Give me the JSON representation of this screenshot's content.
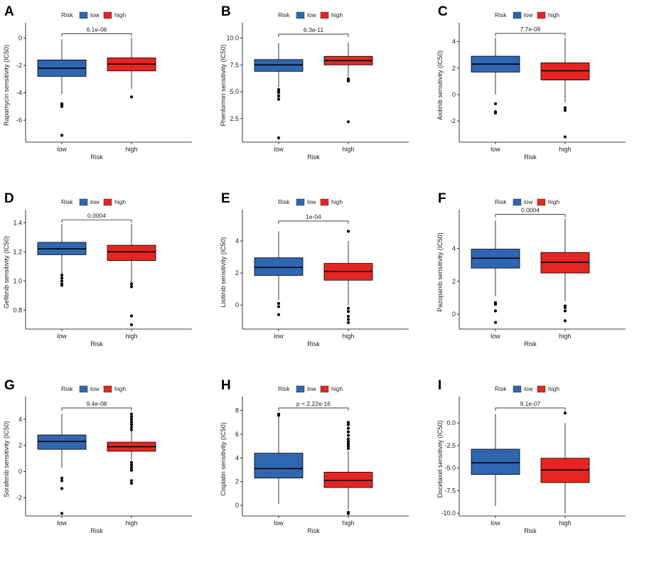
{
  "colors": {
    "low": "#2f66b1",
    "high": "#e62522",
    "line": "#000000"
  },
  "legend": {
    "title": "Risk",
    "labels": [
      "low",
      "high"
    ]
  },
  "chart_data": [
    {
      "type": "box",
      "label": "A",
      "title": "",
      "xlabel": "Risk",
      "ylabel": "Rapamycin sensitivity (IC50)",
      "categories": [
        "low",
        "high"
      ],
      "ylim": [
        -7.6,
        0.7
      ],
      "yticks": [
        -6,
        -4,
        -2,
        0
      ],
      "ytick_labels": [
        "-6",
        "-4",
        "-2",
        "0"
      ],
      "pvalue": "6.1e-06",
      "series": [
        {
          "name": "low",
          "q1": -2.8,
          "median": -2.2,
          "q3": -1.6,
          "whisker_low": -4.1,
          "whisker_high": -0.1,
          "outliers": [
            -4.8,
            -4.9,
            -5.0,
            -7.1
          ]
        },
        {
          "name": "high",
          "q1": -2.4,
          "median": -1.9,
          "q3": -1.45,
          "whisker_low": -3.7,
          "whisker_high": 0.0,
          "outliers": [
            -4.3
          ]
        }
      ]
    },
    {
      "type": "box",
      "label": "B",
      "title": "",
      "xlabel": "Risk",
      "ylabel": "Phenformin sensitivity (IC50)",
      "categories": [
        "low",
        "high"
      ],
      "ylim": [
        0.3,
        10.9
      ],
      "yticks": [
        2.5,
        5.0,
        7.5,
        10.0
      ],
      "ytick_labels": [
        "2.5",
        "5.0",
        "7.5",
        "10.0"
      ],
      "pvalue": "6.3e-11",
      "series": [
        {
          "name": "low",
          "q1": 6.9,
          "median": 7.5,
          "q3": 8.0,
          "whisker_low": 5.4,
          "whisker_high": 9.5,
          "outliers": [
            5.2,
            5.0,
            4.9,
            4.6,
            4.3,
            0.7
          ]
        },
        {
          "name": "high",
          "q1": 7.5,
          "median": 7.9,
          "q3": 8.3,
          "whisker_low": 6.4,
          "whisker_high": 9.6,
          "outliers": [
            6.2,
            6.1,
            6.0,
            2.2
          ]
        }
      ]
    },
    {
      "type": "box",
      "label": "C",
      "title": "",
      "xlabel": "Risk",
      "ylabel": "Axitinib sensitivity (IC50)",
      "categories": [
        "low",
        "high"
      ],
      "ylim": [
        -3.6,
        5.0
      ],
      "yticks": [
        -2,
        0,
        2,
        4
      ],
      "ytick_labels": [
        "-2",
        "0",
        "2",
        "4"
      ],
      "pvalue": "7.7e-09",
      "series": [
        {
          "name": "low",
          "q1": 1.7,
          "median": 2.3,
          "q3": 2.9,
          "whisker_low": 0.0,
          "whisker_high": 4.3,
          "outliers": [
            -0.7,
            -1.3,
            -1.4
          ]
        },
        {
          "name": "high",
          "q1": 1.1,
          "median": 1.8,
          "q3": 2.4,
          "whisker_low": -0.6,
          "whisker_high": 4.3,
          "outliers": [
            -1.0,
            -1.2,
            -3.2
          ]
        }
      ]
    },
    {
      "type": "box",
      "label": "D",
      "title": "",
      "xlabel": "Risk",
      "ylabel": "Gefitinib sensitivity (IC50)",
      "categories": [
        "low",
        "high"
      ],
      "ylim": [
        0.67,
        1.45
      ],
      "yticks": [
        0.8,
        1.0,
        1.2,
        1.4
      ],
      "ytick_labels": [
        "0.8",
        "1.0",
        "1.2",
        "1.4"
      ],
      "pvalue": "0.0004",
      "series": [
        {
          "name": "low",
          "q1": 1.18,
          "median": 1.22,
          "q3": 1.265,
          "whisker_low": 1.05,
          "whisker_high": 1.39,
          "outliers": [
            1.04,
            1.02,
            1.0,
            0.98,
            0.97
          ]
        },
        {
          "name": "high",
          "q1": 1.14,
          "median": 1.2,
          "q3": 1.245,
          "whisker_low": 0.99,
          "whisker_high": 1.39,
          "outliers": [
            0.98,
            0.96,
            0.76,
            0.7
          ]
        }
      ]
    },
    {
      "type": "box",
      "label": "E",
      "title": "",
      "xlabel": "Risk",
      "ylabel": "Lisitinib sensitivity (IC50)",
      "categories": [
        "low",
        "high"
      ],
      "ylim": [
        -1.5,
        5.6
      ],
      "yticks": [
        0,
        2,
        4
      ],
      "ytick_labels": [
        "0",
        "2",
        "4"
      ],
      "pvalue": "1e-04",
      "series": [
        {
          "name": "low",
          "q1": 1.85,
          "median": 2.35,
          "q3": 2.95,
          "whisker_low": 0.3,
          "whisker_high": 4.6,
          "outliers": [
            0.1,
            -0.1,
            -0.6
          ]
        },
        {
          "name": "high",
          "q1": 1.55,
          "median": 2.1,
          "q3": 2.6,
          "whisker_low": 0.0,
          "whisker_high": 4.0,
          "outliers": [
            -0.2,
            -0.4,
            -0.7,
            -0.9,
            -1.1,
            4.6
          ]
        }
      ]
    },
    {
      "type": "box",
      "label": "F",
      "title": "",
      "xlabel": "Risk",
      "ylabel": "Pazopanib sensitivity (IC50)",
      "categories": [
        "low",
        "high"
      ],
      "ylim": [
        -0.9,
        6.0
      ],
      "yticks": [
        0,
        2,
        4
      ],
      "ytick_labels": [
        "0",
        "2",
        "4"
      ],
      "pvalue": "0.0004",
      "series": [
        {
          "name": "low",
          "q1": 2.8,
          "median": 3.4,
          "q3": 3.95,
          "whisker_low": 1.1,
          "whisker_high": 5.7,
          "outliers": [
            0.7,
            0.6,
            0.2,
            -0.5
          ]
        },
        {
          "name": "high",
          "q1": 2.5,
          "median": 3.15,
          "q3": 3.75,
          "whisker_low": 0.8,
          "whisker_high": 5.8,
          "outliers": [
            0.5,
            0.4,
            0.2,
            -0.4
          ]
        }
      ]
    },
    {
      "type": "box",
      "label": "G",
      "title": "",
      "xlabel": "Risk",
      "ylabel": "Sorafenib sensitivity (IC50)",
      "categories": [
        "low",
        "high"
      ],
      "ylim": [
        -3.4,
        5.3
      ],
      "yticks": [
        -2,
        0,
        2,
        4
      ],
      "ytick_labels": [
        "-2",
        "0",
        "2",
        "4"
      ],
      "pvalue": "9.4e-08",
      "series": [
        {
          "name": "low",
          "q1": 1.7,
          "median": 2.3,
          "q3": 2.8,
          "whisker_low": 0.3,
          "whisker_high": 4.4,
          "outliers": [
            -0.5,
            -0.7,
            -1.3,
            -3.2
          ]
        },
        {
          "name": "high",
          "q1": 1.55,
          "median": 1.9,
          "q3": 2.25,
          "whisker_low": 0.9,
          "whisker_high": 3.1,
          "outliers": [
            3.2,
            3.4,
            3.6,
            3.8,
            4.0,
            4.2,
            4.4,
            0.7,
            0.5,
            0.3,
            0.1,
            -0.7,
            -0.9
          ]
        }
      ]
    },
    {
      "type": "box",
      "label": "H",
      "title": "",
      "xlabel": "Risk",
      "ylabel": "Cisplatin sensitivity (IC50)",
      "categories": [
        "low",
        "high"
      ],
      "ylim": [
        -0.9,
        8.7
      ],
      "yticks": [
        0,
        2,
        4,
        6,
        8
      ],
      "ytick_labels": [
        "0",
        "2",
        "4",
        "6",
        "8"
      ],
      "pvalue": "p < 2.22e-16",
      "series": [
        {
          "name": "low",
          "q1": 2.3,
          "median": 3.1,
          "q3": 4.4,
          "whisker_low": 0.1,
          "whisker_high": 7.5,
          "outliers": [
            7.6,
            7.7
          ]
        },
        {
          "name": "high",
          "q1": 1.5,
          "median": 2.1,
          "q3": 2.8,
          "whisker_low": -0.4,
          "whisker_high": 4.6,
          "outliers": [
            4.8,
            5.0,
            5.2,
            5.4,
            5.6,
            5.9,
            6.2,
            6.5,
            6.8,
            7.0,
            -0.6,
            -0.7
          ]
        }
      ]
    },
    {
      "type": "box",
      "label": "I",
      "title": "",
      "xlabel": "Risk",
      "ylabel": "Docetaxel sensitivity (IC50)",
      "categories": [
        "low",
        "high"
      ],
      "ylim": [
        -10.3,
        2.3
      ],
      "yticks": [
        -10.0,
        -7.5,
        -5.0,
        -2.5,
        0.0
      ],
      "ytick_labels": [
        "-10.0",
        "-7.5",
        "-5.0",
        "-2.5",
        "0.0"
      ],
      "pvalue": "9.1e-07",
      "series": [
        {
          "name": "low",
          "q1": -5.7,
          "median": -4.4,
          "q3": -2.9,
          "whisker_low": -9.2,
          "whisker_high": 1.0,
          "outliers": []
        },
        {
          "name": "high",
          "q1": -6.6,
          "median": -5.2,
          "q3": -3.9,
          "whisker_low": -10.0,
          "whisker_high": 0.0,
          "outliers": [
            1.1
          ]
        }
      ]
    }
  ]
}
